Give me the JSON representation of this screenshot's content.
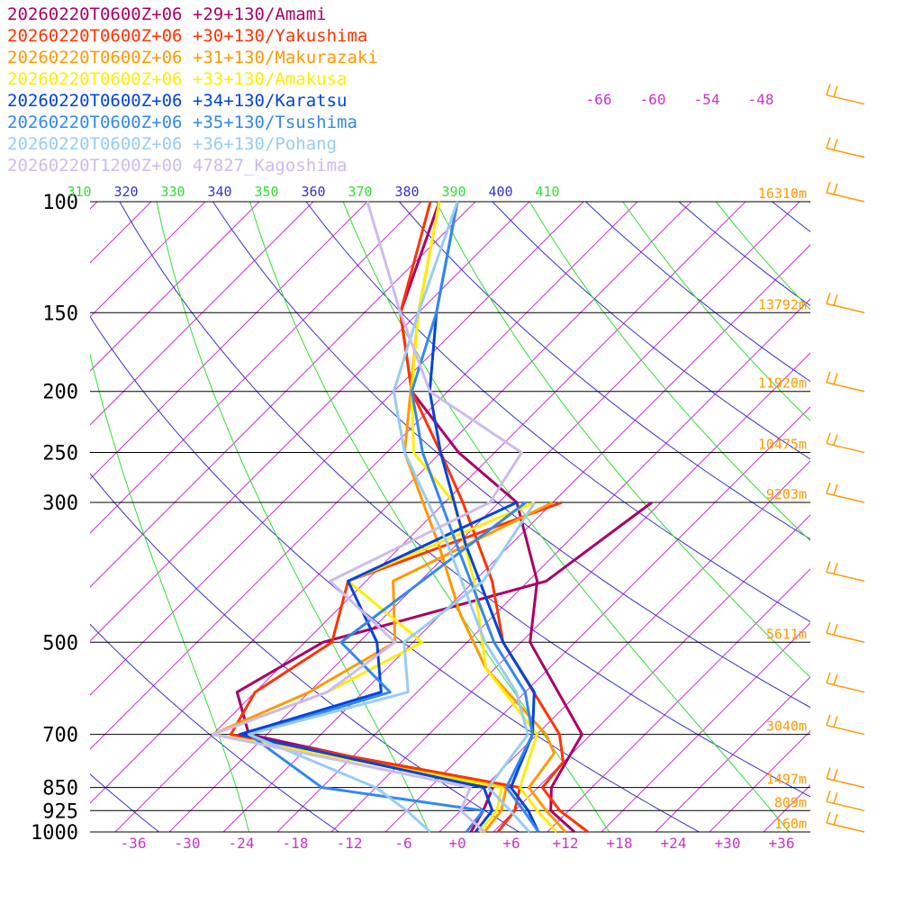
{
  "chart_data": {
    "type": "line",
    "title": "",
    "xlabel": "",
    "ylabel": "",
    "chart_kind": "skew-T log-p sounding",
    "xlim": [
      -40,
      40
    ],
    "ylim": [
      1000,
      100
    ],
    "y_scale": "log",
    "grid": true,
    "pressure_levels": [
      100,
      150,
      200,
      250,
      300,
      500,
      700,
      850,
      925,
      1000
    ],
    "pressure_labels": [
      "100",
      "150",
      "200",
      "250",
      "300",
      "500",
      "700",
      "850",
      "925",
      "1000"
    ],
    "height_labels": [
      {
        "p": 100,
        "label": "16310m"
      },
      {
        "p": 150,
        "label": "13792m"
      },
      {
        "p": 200,
        "label": "11920m"
      },
      {
        "p": 250,
        "label": "10475m"
      },
      {
        "p": 300,
        "label": "9203m"
      },
      {
        "p": 500,
        "label": "5611m"
      },
      {
        "p": 700,
        "label": "3040m"
      },
      {
        "p": 850,
        "label": "1497m"
      },
      {
        "p": 925,
        "label": "809m"
      },
      {
        "p": 1000,
        "label": "160m"
      }
    ],
    "x_ticks": [
      -36,
      -30,
      -24,
      -18,
      -12,
      -6,
      0,
      6,
      12,
      18,
      24,
      30,
      36
    ],
    "x_tick_labels": [
      "-36",
      "-30",
      "-24",
      "-18",
      "-12",
      "-6",
      "+0",
      "+6",
      "+12",
      "+18",
      "+24",
      "+30",
      "+36"
    ],
    "isotherm_top_labels": [
      "-66",
      "-60",
      "-54",
      "-48"
    ],
    "theta_labels": [
      "310",
      "320",
      "330",
      "340",
      "350",
      "360",
      "370",
      "380",
      "390",
      "400",
      "410"
    ],
    "series": [
      {
        "name": "20260220T0600Z+06 +29+130/Amami",
        "color": "#aa0066",
        "temperature": [
          [
            1000,
            13.0
          ],
          [
            925,
            8.0
          ],
          [
            850,
            5.5
          ],
          [
            700,
            3.0
          ],
          [
            500,
            -13.0
          ],
          [
            400,
            -19.0
          ],
          [
            300,
            -30.0
          ],
          [
            250,
            -42.0
          ],
          [
            200,
            -54.0
          ],
          [
            150,
            -64.0
          ],
          [
            100,
            -72.0
          ]
        ],
        "dewpoint": [
          [
            1000,
            1.5
          ],
          [
            925,
            0.5
          ],
          [
            850,
            -1.0
          ],
          [
            700,
            -34.0
          ],
          [
            600,
            -40.0
          ],
          [
            500,
            -36.0
          ],
          [
            400,
            -18.0
          ],
          [
            300,
            -15.0
          ]
        ]
      },
      {
        "name": "20260220T0600Z+06 +30+130/Yakushima",
        "color": "#ff3300",
        "temperature": [
          [
            1000,
            14.5
          ],
          [
            925,
            9.0
          ],
          [
            850,
            4.5
          ],
          [
            775,
            4.0
          ],
          [
            700,
            0.5
          ],
          [
            500,
            -16.0
          ],
          [
            400,
            -24.0
          ],
          [
            300,
            -36.0
          ],
          [
            250,
            -44.0
          ],
          [
            200,
            -54.0
          ],
          [
            150,
            -64.0
          ],
          [
            100,
            -73.0
          ]
        ],
        "dewpoint": [
          [
            1000,
            4.5
          ],
          [
            925,
            4.0
          ],
          [
            850,
            2.0
          ],
          [
            700,
            -36.0
          ],
          [
            600,
            -38.0
          ],
          [
            500,
            -35.0
          ],
          [
            400,
            -40.0
          ],
          [
            300,
            -25.0
          ]
        ]
      },
      {
        "name": "20260220T0600Z+06 +31+130/Makurazaki",
        "color": "#ff9900",
        "temperature": [
          [
            1000,
            12.0
          ],
          [
            925,
            7.5
          ],
          [
            850,
            3.0
          ],
          [
            750,
            2.0
          ],
          [
            700,
            -1.0
          ],
          [
            550,
            -15.0
          ],
          [
            450,
            -24.0
          ],
          [
            350,
            -34.0
          ],
          [
            250,
            -48.0
          ],
          [
            150,
            -62.0
          ],
          [
            100,
            -72.0
          ]
        ],
        "dewpoint": [
          [
            1000,
            3.0
          ],
          [
            925,
            2.5
          ],
          [
            850,
            0.5
          ],
          [
            700,
            -38.0
          ],
          [
            600,
            -32.0
          ],
          [
            500,
            -28.0
          ],
          [
            400,
            -35.0
          ],
          [
            300,
            -26.0
          ]
        ]
      },
      {
        "name": "20260220T0600Z+06 +33+130/Amakusa",
        "color": "#ffee00",
        "temperature": [
          [
            1000,
            11.0
          ],
          [
            925,
            6.5
          ],
          [
            850,
            2.0
          ],
          [
            700,
            -2.0
          ],
          [
            550,
            -15.0
          ],
          [
            400,
            -26.0
          ],
          [
            300,
            -37.0
          ],
          [
            250,
            -47.0
          ],
          [
            200,
            -54.0
          ],
          [
            150,
            -62.0
          ],
          [
            100,
            -72.0
          ]
        ],
        "dewpoint": [
          [
            1000,
            2.5
          ],
          [
            925,
            2.0
          ],
          [
            850,
            0.0
          ],
          [
            700,
            -38.0
          ],
          [
            600,
            -30.0
          ],
          [
            500,
            -25.0
          ],
          [
            400,
            -40.0
          ],
          [
            300,
            -28.0
          ]
        ]
      },
      {
        "name": "20260220T0600Z+06 +34+130/Karatsu",
        "color": "#0044dd",
        "temperature": [
          [
            1000,
            9.0
          ],
          [
            925,
            5.5
          ],
          [
            850,
            1.0
          ],
          [
            700,
            -2.5
          ],
          [
            600,
            -7.0
          ],
          [
            500,
            -16.0
          ],
          [
            350,
            -31.0
          ],
          [
            250,
            -44.0
          ],
          [
            200,
            -52.0
          ],
          [
            150,
            -60.0
          ],
          [
            100,
            -70.0
          ]
        ],
        "dewpoint": [
          [
            1000,
            2.0
          ],
          [
            925,
            1.5
          ],
          [
            850,
            -2.0
          ],
          [
            700,
            -35.0
          ],
          [
            600,
            -24.0
          ],
          [
            500,
            -30.0
          ],
          [
            400,
            -40.0
          ],
          [
            300,
            -30.0
          ]
        ]
      },
      {
        "name": "20260220T0600Z+06 +35+130/Tsushima",
        "color": "#3388ee",
        "temperature": [
          [
            1000,
            9.0
          ],
          [
            925,
            5.0
          ],
          [
            850,
            0.5
          ],
          [
            700,
            -2.5
          ],
          [
            600,
            -8.0
          ],
          [
            500,
            -17.0
          ],
          [
            350,
            -32.0
          ],
          [
            250,
            -46.0
          ],
          [
            200,
            -54.0
          ],
          [
            150,
            -60.0
          ],
          [
            100,
            -70.0
          ]
        ],
        "dewpoint": [
          [
            1000,
            1.0
          ],
          [
            925,
            0.5
          ],
          [
            850,
            -20.0
          ],
          [
            700,
            -34.0
          ],
          [
            600,
            -23.0
          ],
          [
            500,
            -34.0
          ],
          [
            300,
            -29.0
          ]
        ]
      },
      {
        "name": "20260220T0600Z+06 +36+130/Pohang",
        "color": "#99ccf2",
        "temperature": [
          [
            1000,
            8.0
          ],
          [
            925,
            3.5
          ],
          [
            850,
            -1.5
          ],
          [
            700,
            -3.0
          ],
          [
            600,
            -9.0
          ],
          [
            500,
            -18.0
          ],
          [
            350,
            -33.0
          ],
          [
            250,
            -48.0
          ],
          [
            200,
            -56.0
          ],
          [
            150,
            -62.0
          ],
          [
            100,
            -70.0
          ]
        ],
        "dewpoint": [
          [
            1000,
            -3.0
          ],
          [
            925,
            -8.0
          ],
          [
            850,
            -14.0
          ],
          [
            700,
            -34.0
          ],
          [
            600,
            -21.0
          ],
          [
            500,
            -27.0
          ],
          [
            400,
            -25.0
          ],
          [
            300,
            -28.0
          ]
        ]
      },
      {
        "name": "20260220T1200Z+00 47827_Kagoshima",
        "color": "#ccbbee",
        "temperature": [
          [
            1000,
            3.0
          ],
          [
            925,
            -2.0
          ],
          [
            850,
            -3.5
          ],
          [
            700,
            -38.0
          ],
          [
            600,
            -30.0
          ],
          [
            500,
            -28.0
          ],
          [
            400,
            -42.0
          ],
          [
            300,
            -33.0
          ],
          [
            250,
            -35.0
          ],
          [
            200,
            -52.0
          ],
          [
            150,
            -64.0
          ],
          [
            100,
            -80.0
          ]
        ],
        "dewpoint": []
      }
    ],
    "wind_barbs_color": "#ff9900"
  }
}
